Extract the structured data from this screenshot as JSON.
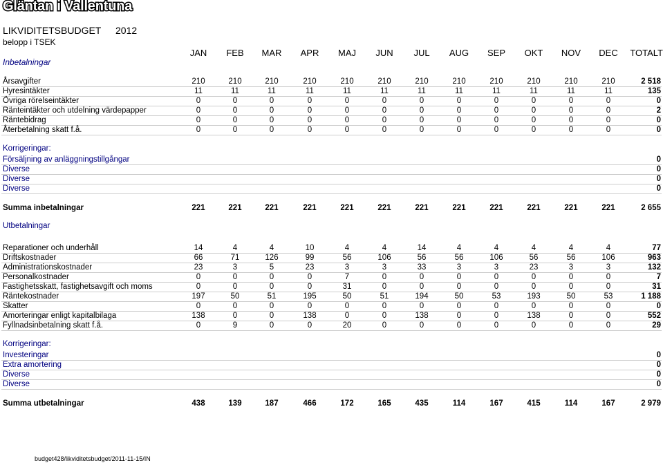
{
  "header": {
    "title": "Gläntan i Vallentuna",
    "budget_title": "LIKVIDITETSBUDGET",
    "year": "2012",
    "unit": "belopp i TSEK",
    "inbetalningar_heading": "Inbetalningar"
  },
  "months": [
    "JAN",
    "FEB",
    "MAR",
    "APR",
    "MAJ",
    "JUN",
    "JUL",
    "AUG",
    "SEP",
    "OKT",
    "NOV",
    "DEC",
    "TOTALT"
  ],
  "income_rows": [
    {
      "label": "Årsavgifter",
      "values": [
        "210",
        "210",
        "210",
        "210",
        "210",
        "210",
        "210",
        "210",
        "210",
        "210",
        "210",
        "210"
      ],
      "total": "2 518"
    },
    {
      "label": "Hyresintäkter",
      "values": [
        "11",
        "11",
        "11",
        "11",
        "11",
        "11",
        "11",
        "11",
        "11",
        "11",
        "11",
        "11"
      ],
      "total": "135"
    },
    {
      "label": "Övriga rörelseintäkter",
      "values": [
        "0",
        "0",
        "0",
        "0",
        "0",
        "0",
        "0",
        "0",
        "0",
        "0",
        "0",
        "0"
      ],
      "total": "0"
    },
    {
      "label": "Ränteintäkter och utdelning värdepapper",
      "values": [
        "0",
        "0",
        "0",
        "0",
        "0",
        "0",
        "0",
        "0",
        "0",
        "0",
        "0",
        "0"
      ],
      "total": "2"
    },
    {
      "label": "Räntebidrag",
      "values": [
        "0",
        "0",
        "0",
        "0",
        "0",
        "0",
        "0",
        "0",
        "0",
        "0",
        "0",
        "0"
      ],
      "total": "0"
    },
    {
      "label": "Återbetalning skatt f.å.",
      "values": [
        "0",
        "0",
        "0",
        "0",
        "0",
        "0",
        "0",
        "0",
        "0",
        "0",
        "0",
        "0"
      ],
      "total": "0"
    }
  ],
  "income_corrections": {
    "heading": "Korrigeringar:",
    "rows": [
      {
        "label": "Försäljning av anläggningstillgångar",
        "total": "0"
      },
      {
        "label": "Diverse",
        "total": "0"
      },
      {
        "label": "Diverse",
        "total": "0"
      },
      {
        "label": "Diverse",
        "total": "0"
      }
    ]
  },
  "income_sum": {
    "label": "Summa inbetalningar",
    "values": [
      "221",
      "221",
      "221",
      "221",
      "221",
      "221",
      "221",
      "221",
      "221",
      "221",
      "221",
      "221"
    ],
    "total": "2 655"
  },
  "utbetalningar_heading": "Utbetalningar",
  "expense_rows": [
    {
      "label": "Reparationer och underhåll",
      "values": [
        "14",
        "4",
        "4",
        "10",
        "4",
        "4",
        "14",
        "4",
        "4",
        "4",
        "4",
        "4"
      ],
      "total": "77"
    },
    {
      "label": "Driftskostnader",
      "values": [
        "66",
        "71",
        "126",
        "99",
        "56",
        "106",
        "56",
        "56",
        "106",
        "56",
        "56",
        "106"
      ],
      "total": "963"
    },
    {
      "label": "Administrationskostnader",
      "values": [
        "23",
        "3",
        "5",
        "23",
        "3",
        "3",
        "33",
        "3",
        "3",
        "23",
        "3",
        "3"
      ],
      "total": "132"
    },
    {
      "label": "Personalkostnader",
      "values": [
        "0",
        "0",
        "0",
        "0",
        "7",
        "0",
        "0",
        "0",
        "0",
        "0",
        "0",
        "0"
      ],
      "total": "7"
    },
    {
      "label": "Fastighetsskatt, fastighetsavgift och moms",
      "values": [
        "0",
        "0",
        "0",
        "0",
        "31",
        "0",
        "0",
        "0",
        "0",
        "0",
        "0",
        "0"
      ],
      "total": "31"
    },
    {
      "label": "Räntekostnader",
      "values": [
        "197",
        "50",
        "51",
        "195",
        "50",
        "51",
        "194",
        "50",
        "53",
        "193",
        "50",
        "53"
      ],
      "total": "1 188"
    },
    {
      "label": "Skatter",
      "values": [
        "0",
        "0",
        "0",
        "0",
        "0",
        "0",
        "0",
        "0",
        "0",
        "0",
        "0",
        "0"
      ],
      "total": "0"
    },
    {
      "label": "Amorteringar enligt kapitalbilaga",
      "values": [
        "138",
        "0",
        "0",
        "138",
        "0",
        "0",
        "138",
        "0",
        "0",
        "138",
        "0",
        "0"
      ],
      "total": "552"
    },
    {
      "label": "Fyllnadsinbetalning skatt f.å.",
      "values": [
        "0",
        "9",
        "0",
        "0",
        "20",
        "0",
        "0",
        "0",
        "0",
        "0",
        "0",
        "0"
      ],
      "total": "29"
    }
  ],
  "expense_corrections": {
    "heading": "Korrigeringar:",
    "rows": [
      {
        "label": "Investeringar",
        "total": "0"
      },
      {
        "label": "Extra amortering",
        "total": "0"
      },
      {
        "label": "Diverse",
        "total": "0"
      },
      {
        "label": "Diverse",
        "total": "0"
      }
    ]
  },
  "expense_sum": {
    "label": "Summa utbetalningar",
    "values": [
      "438",
      "139",
      "187",
      "466",
      "172",
      "165",
      "435",
      "114",
      "167",
      "415",
      "114",
      "167"
    ],
    "total": "2 979"
  },
  "footer": "budget428/likviditetsbudget/2011-11-15/IN"
}
